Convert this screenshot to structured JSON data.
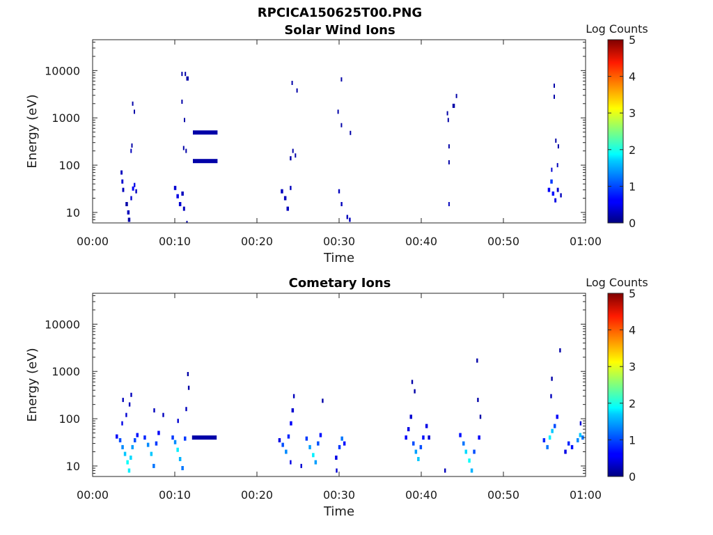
{
  "figure": {
    "title": "RPCICA150625T00.PNG"
  },
  "chart_data": [
    {
      "type": "heatmap",
      "title": "Solar Wind Ions",
      "xlabel": "Time",
      "ylabel": "Energy (eV)",
      "x_ticks": [
        "00:00",
        "00:10",
        "00:20",
        "00:30",
        "00:40",
        "00:50",
        "01:00"
      ],
      "y_ticks": [
        "10",
        "100",
        "1000",
        "10000"
      ],
      "x_range_minutes": [
        0,
        60
      ],
      "y_range_eV": [
        6,
        45000
      ],
      "y_scale": "log",
      "colorbar": {
        "label": "Log Counts",
        "ticks": [
          "0",
          "1",
          "2",
          "3",
          "4",
          "5"
        ],
        "range": [
          0,
          5
        ],
        "colormap": "jet"
      },
      "cells": [
        {
          "t": 3.4,
          "dt": 0.25,
          "e": 70,
          "v": 0.3
        },
        {
          "t": 3.5,
          "dt": 0.25,
          "e": 45,
          "v": 0.4
        },
        {
          "t": 3.6,
          "dt": 0.25,
          "e": 30,
          "v": 0.3
        },
        {
          "t": 4.0,
          "dt": 0.3,
          "e": 15,
          "v": 0.2
        },
        {
          "t": 4.2,
          "dt": 0.3,
          "e": 10,
          "v": 0.3
        },
        {
          "t": 4.3,
          "dt": 0.3,
          "e": 7,
          "v": 0.2
        },
        {
          "t": 4.6,
          "dt": 0.2,
          "e": 20,
          "v": 0.4
        },
        {
          "t": 4.8,
          "dt": 0.25,
          "e": 32,
          "v": 0.6
        },
        {
          "t": 5.0,
          "dt": 0.2,
          "e": 38,
          "v": 0.5
        },
        {
          "t": 5.2,
          "dt": 0.2,
          "e": 28,
          "v": 0.3
        },
        {
          "t": 4.6,
          "dt": 0.15,
          "e": 200,
          "v": 0.3
        },
        {
          "t": 4.7,
          "dt": 0.15,
          "e": 260,
          "v": 0.2
        },
        {
          "t": 4.8,
          "dt": 0.15,
          "e": 2000,
          "v": 0.2
        },
        {
          "t": 5.0,
          "dt": 0.15,
          "e": 1350,
          "v": 0.2
        },
        {
          "t": 9.9,
          "dt": 0.3,
          "e": 33,
          "v": 0.4
        },
        {
          "t": 10.2,
          "dt": 0.3,
          "e": 22,
          "v": 0.5
        },
        {
          "t": 10.5,
          "dt": 0.3,
          "e": 15,
          "v": 0.4
        },
        {
          "t": 10.8,
          "dt": 0.3,
          "e": 25,
          "v": 0.3
        },
        {
          "t": 11.0,
          "dt": 0.25,
          "e": 12,
          "v": 0.3
        },
        {
          "t": 11.4,
          "dt": 0.15,
          "e": 6,
          "v": 0.2
        },
        {
          "t": 10.8,
          "dt": 0.15,
          "e": 2200,
          "v": 0.2
        },
        {
          "t": 11.1,
          "dt": 0.15,
          "e": 900,
          "v": 0.2
        },
        {
          "t": 11.0,
          "dt": 0.15,
          "e": 230,
          "v": 0.2
        },
        {
          "t": 11.3,
          "dt": 0.15,
          "e": 200,
          "v": 0.2
        },
        {
          "t": 10.8,
          "dt": 0.15,
          "e": 8500,
          "v": 0.2
        },
        {
          "t": 11.2,
          "dt": 0.15,
          "e": 8500,
          "v": 0.2
        },
        {
          "t": 11.4,
          "dt": 0.3,
          "e": 6800,
          "v": 0.2
        },
        {
          "t": 12.2,
          "dt": 3.0,
          "e": 490,
          "v": 0.2
        },
        {
          "t": 12.2,
          "dt": 3.0,
          "e": 122,
          "v": 0.2
        },
        {
          "t": 22.9,
          "dt": 0.3,
          "e": 28,
          "v": 0.3
        },
        {
          "t": 23.3,
          "dt": 0.3,
          "e": 20,
          "v": 0.3
        },
        {
          "t": 23.6,
          "dt": 0.3,
          "e": 12,
          "v": 0.3
        },
        {
          "t": 24.0,
          "dt": 0.2,
          "e": 33,
          "v": 0.3
        },
        {
          "t": 24.0,
          "dt": 0.2,
          "e": 140,
          "v": 0.2
        },
        {
          "t": 24.3,
          "dt": 0.15,
          "e": 200,
          "v": 0.2
        },
        {
          "t": 24.6,
          "dt": 0.15,
          "e": 160,
          "v": 0.2
        },
        {
          "t": 24.2,
          "dt": 0.15,
          "e": 5500,
          "v": 0.2
        },
        {
          "t": 24.8,
          "dt": 0.15,
          "e": 3800,
          "v": 0.2
        },
        {
          "t": 29.9,
          "dt": 0.2,
          "e": 28,
          "v": 0.3
        },
        {
          "t": 30.2,
          "dt": 0.2,
          "e": 15,
          "v": 0.3
        },
        {
          "t": 30.9,
          "dt": 0.2,
          "e": 8,
          "v": 0.3
        },
        {
          "t": 31.2,
          "dt": 0.2,
          "e": 7,
          "v": 0.3
        },
        {
          "t": 29.8,
          "dt": 0.15,
          "e": 1350,
          "v": 0.2
        },
        {
          "t": 30.2,
          "dt": 0.15,
          "e": 700,
          "v": 0.2
        },
        {
          "t": 31.3,
          "dt": 0.15,
          "e": 480,
          "v": 0.2
        },
        {
          "t": 30.2,
          "dt": 0.15,
          "e": 6500,
          "v": 0.2
        },
        {
          "t": 43.3,
          "dt": 0.15,
          "e": 15,
          "v": 0.3
        },
        {
          "t": 43.3,
          "dt": 0.15,
          "e": 115,
          "v": 0.2
        },
        {
          "t": 43.3,
          "dt": 0.15,
          "e": 250,
          "v": 0.2
        },
        {
          "t": 43.2,
          "dt": 0.15,
          "e": 900,
          "v": 0.2
        },
        {
          "t": 43.1,
          "dt": 0.15,
          "e": 1250,
          "v": 0.2
        },
        {
          "t": 43.8,
          "dt": 0.3,
          "e": 1800,
          "v": 0.2
        },
        {
          "t": 44.2,
          "dt": 0.15,
          "e": 2900,
          "v": 0.2
        },
        {
          "t": 55.4,
          "dt": 0.3,
          "e": 30,
          "v": 0.6
        },
        {
          "t": 55.7,
          "dt": 0.3,
          "e": 45,
          "v": 0.9
        },
        {
          "t": 55.9,
          "dt": 0.3,
          "e": 25,
          "v": 0.7
        },
        {
          "t": 56.2,
          "dt": 0.25,
          "e": 18,
          "v": 0.5
        },
        {
          "t": 56.5,
          "dt": 0.25,
          "e": 30,
          "v": 0.4
        },
        {
          "t": 56.9,
          "dt": 0.2,
          "e": 23,
          "v": 0.3
        },
        {
          "t": 55.8,
          "dt": 0.15,
          "e": 80,
          "v": 0.4
        },
        {
          "t": 56.5,
          "dt": 0.15,
          "e": 100,
          "v": 0.3
        },
        {
          "t": 56.3,
          "dt": 0.15,
          "e": 330,
          "v": 0.2
        },
        {
          "t": 56.6,
          "dt": 0.15,
          "e": 250,
          "v": 0.2
        },
        {
          "t": 56.1,
          "dt": 0.15,
          "e": 2800,
          "v": 0.2
        },
        {
          "t": 56.1,
          "dt": 0.15,
          "e": 4800,
          "v": 0.2
        }
      ]
    },
    {
      "type": "heatmap",
      "title": "Cometary Ions",
      "xlabel": "Time",
      "ylabel": "Energy (eV)",
      "x_ticks": [
        "00:00",
        "00:10",
        "00:20",
        "00:30",
        "00:40",
        "00:50",
        "01:00"
      ],
      "y_ticks": [
        "10",
        "100",
        "1000",
        "10000"
      ],
      "x_range_minutes": [
        0,
        60
      ],
      "y_range_eV": [
        6,
        45000
      ],
      "y_scale": "log",
      "colorbar": {
        "label": "Log Counts",
        "ticks": [
          "0",
          "1",
          "2",
          "3",
          "4",
          "5"
        ],
        "range": [
          0,
          5
        ],
        "colormap": "jet"
      },
      "cells": [
        {
          "t": 2.8,
          "dt": 0.3,
          "e": 42,
          "v": 0.6
        },
        {
          "t": 3.2,
          "dt": 0.3,
          "e": 35,
          "v": 1.0
        },
        {
          "t": 3.5,
          "dt": 0.3,
          "e": 25,
          "v": 1.3
        },
        {
          "t": 3.8,
          "dt": 0.3,
          "e": 18,
          "v": 1.6
        },
        {
          "t": 4.1,
          "dt": 0.3,
          "e": 12,
          "v": 1.9
        },
        {
          "t": 4.3,
          "dt": 0.3,
          "e": 8,
          "v": 1.8
        },
        {
          "t": 4.5,
          "dt": 0.3,
          "e": 15,
          "v": 1.7
        },
        {
          "t": 4.7,
          "dt": 0.3,
          "e": 25,
          "v": 1.4
        },
        {
          "t": 5.0,
          "dt": 0.3,
          "e": 35,
          "v": 1.0
        },
        {
          "t": 5.3,
          "dt": 0.3,
          "e": 45,
          "v": 0.7
        },
        {
          "t": 3.5,
          "dt": 0.2,
          "e": 80,
          "v": 0.5
        },
        {
          "t": 4.0,
          "dt": 0.2,
          "e": 120,
          "v": 0.4
        },
        {
          "t": 4.4,
          "dt": 0.2,
          "e": 200,
          "v": 0.3
        },
        {
          "t": 4.6,
          "dt": 0.2,
          "e": 320,
          "v": 0.3
        },
        {
          "t": 3.6,
          "dt": 0.2,
          "e": 250,
          "v": 0.3
        },
        {
          "t": 6.2,
          "dt": 0.3,
          "e": 40,
          "v": 0.8
        },
        {
          "t": 6.6,
          "dt": 0.3,
          "e": 28,
          "v": 1.3
        },
        {
          "t": 7.0,
          "dt": 0.3,
          "e": 18,
          "v": 1.6
        },
        {
          "t": 7.3,
          "dt": 0.3,
          "e": 10,
          "v": 1.2
        },
        {
          "t": 7.6,
          "dt": 0.3,
          "e": 30,
          "v": 0.9
        },
        {
          "t": 7.9,
          "dt": 0.3,
          "e": 50,
          "v": 0.6
        },
        {
          "t": 7.4,
          "dt": 0.2,
          "e": 150,
          "v": 0.3
        },
        {
          "t": 8.5,
          "dt": 0.2,
          "e": 120,
          "v": 0.3
        },
        {
          "t": 9.6,
          "dt": 0.3,
          "e": 40,
          "v": 0.9
        },
        {
          "t": 9.9,
          "dt": 0.3,
          "e": 32,
          "v": 1.3
        },
        {
          "t": 10.2,
          "dt": 0.3,
          "e": 22,
          "v": 1.8
        },
        {
          "t": 10.5,
          "dt": 0.3,
          "e": 14,
          "v": 1.5
        },
        {
          "t": 10.8,
          "dt": 0.3,
          "e": 9,
          "v": 1.2
        },
        {
          "t": 11.1,
          "dt": 0.3,
          "e": 38,
          "v": 0.9
        },
        {
          "t": 10.3,
          "dt": 0.2,
          "e": 90,
          "v": 0.4
        },
        {
          "t": 11.3,
          "dt": 0.2,
          "e": 160,
          "v": 0.3
        },
        {
          "t": 11.5,
          "dt": 0.2,
          "e": 880,
          "v": 0.2
        },
        {
          "t": 11.6,
          "dt": 0.2,
          "e": 450,
          "v": 0.2
        },
        {
          "t": 12.1,
          "dt": 3.0,
          "e": 40,
          "v": 0.2
        },
        {
          "t": 22.6,
          "dt": 0.3,
          "e": 35,
          "v": 0.5
        },
        {
          "t": 23.0,
          "dt": 0.3,
          "e": 28,
          "v": 1.0
        },
        {
          "t": 23.4,
          "dt": 0.3,
          "e": 20,
          "v": 1.3
        },
        {
          "t": 23.7,
          "dt": 0.3,
          "e": 42,
          "v": 0.8
        },
        {
          "t": 24.0,
          "dt": 0.3,
          "e": 80,
          "v": 0.6
        },
        {
          "t": 24.2,
          "dt": 0.3,
          "e": 150,
          "v": 0.4
        },
        {
          "t": 24.4,
          "dt": 0.2,
          "e": 300,
          "v": 0.3
        },
        {
          "t": 24.0,
          "dt": 0.2,
          "e": 12,
          "v": 0.5
        },
        {
          "t": 25.3,
          "dt": 0.2,
          "e": 10,
          "v": 0.4
        },
        {
          "t": 25.9,
          "dt": 0.3,
          "e": 38,
          "v": 0.9
        },
        {
          "t": 26.3,
          "dt": 0.3,
          "e": 25,
          "v": 1.4
        },
        {
          "t": 26.7,
          "dt": 0.3,
          "e": 17,
          "v": 1.8
        },
        {
          "t": 27.0,
          "dt": 0.3,
          "e": 12,
          "v": 1.4
        },
        {
          "t": 27.3,
          "dt": 0.3,
          "e": 30,
          "v": 1.0
        },
        {
          "t": 27.6,
          "dt": 0.3,
          "e": 45,
          "v": 0.7
        },
        {
          "t": 27.9,
          "dt": 0.2,
          "e": 240,
          "v": 0.2
        },
        {
          "t": 29.5,
          "dt": 0.3,
          "e": 15,
          "v": 0.5
        },
        {
          "t": 29.9,
          "dt": 0.3,
          "e": 25,
          "v": 0.9
        },
        {
          "t": 30.2,
          "dt": 0.3,
          "e": 38,
          "v": 1.2
        },
        {
          "t": 30.5,
          "dt": 0.3,
          "e": 30,
          "v": 0.7
        },
        {
          "t": 29.6,
          "dt": 0.2,
          "e": 8,
          "v": 0.4
        },
        {
          "t": 38.0,
          "dt": 0.3,
          "e": 40,
          "v": 0.6
        },
        {
          "t": 38.3,
          "dt": 0.3,
          "e": 60,
          "v": 0.5
        },
        {
          "t": 38.6,
          "dt": 0.3,
          "e": 110,
          "v": 0.4
        },
        {
          "t": 38.9,
          "dt": 0.3,
          "e": 30,
          "v": 1.0
        },
        {
          "t": 39.2,
          "dt": 0.3,
          "e": 20,
          "v": 1.4
        },
        {
          "t": 39.5,
          "dt": 0.3,
          "e": 14,
          "v": 1.6
        },
        {
          "t": 39.8,
          "dt": 0.3,
          "e": 25,
          "v": 1.0
        },
        {
          "t": 40.1,
          "dt": 0.3,
          "e": 40,
          "v": 0.7
        },
        {
          "t": 40.5,
          "dt": 0.3,
          "e": 70,
          "v": 0.5
        },
        {
          "t": 40.8,
          "dt": 0.3,
          "e": 40,
          "v": 0.4
        },
        {
          "t": 38.8,
          "dt": 0.2,
          "e": 600,
          "v": 0.2
        },
        {
          "t": 39.1,
          "dt": 0.2,
          "e": 380,
          "v": 0.2
        },
        {
          "t": 42.8,
          "dt": 0.2,
          "e": 8,
          "v": 0.3
        },
        {
          "t": 44.6,
          "dt": 0.3,
          "e": 45,
          "v": 0.7
        },
        {
          "t": 45.0,
          "dt": 0.3,
          "e": 30,
          "v": 1.2
        },
        {
          "t": 45.3,
          "dt": 0.3,
          "e": 20,
          "v": 1.7
        },
        {
          "t": 45.7,
          "dt": 0.3,
          "e": 13,
          "v": 1.9
        },
        {
          "t": 46.0,
          "dt": 0.3,
          "e": 8,
          "v": 1.5
        },
        {
          "t": 46.3,
          "dt": 0.3,
          "e": 20,
          "v": 1.0
        },
        {
          "t": 46.9,
          "dt": 0.3,
          "e": 40,
          "v": 0.6
        },
        {
          "t": 46.8,
          "dt": 0.2,
          "e": 250,
          "v": 0.2
        },
        {
          "t": 46.7,
          "dt": 0.2,
          "e": 1700,
          "v": 0.2
        },
        {
          "t": 47.1,
          "dt": 0.2,
          "e": 110,
          "v": 0.2
        },
        {
          "t": 54.8,
          "dt": 0.3,
          "e": 35,
          "v": 0.8
        },
        {
          "t": 55.2,
          "dt": 0.3,
          "e": 25,
          "v": 1.2
        },
        {
          "t": 55.5,
          "dt": 0.3,
          "e": 40,
          "v": 1.8
        },
        {
          "t": 55.8,
          "dt": 0.3,
          "e": 55,
          "v": 1.6
        },
        {
          "t": 56.1,
          "dt": 0.3,
          "e": 70,
          "v": 1.0
        },
        {
          "t": 56.4,
          "dt": 0.3,
          "e": 110,
          "v": 0.6
        },
        {
          "t": 55.7,
          "dt": 0.2,
          "e": 300,
          "v": 0.3
        },
        {
          "t": 55.8,
          "dt": 0.2,
          "e": 700,
          "v": 0.2
        },
        {
          "t": 56.8,
          "dt": 0.2,
          "e": 2800,
          "v": 0.2
        },
        {
          "t": 57.4,
          "dt": 0.3,
          "e": 20,
          "v": 0.5
        },
        {
          "t": 57.8,
          "dt": 0.3,
          "e": 30,
          "v": 0.8
        },
        {
          "t": 58.2,
          "dt": 0.3,
          "e": 25,
          "v": 0.7
        },
        {
          "t": 58.9,
          "dt": 0.3,
          "e": 35,
          "v": 1.3
        },
        {
          "t": 59.2,
          "dt": 0.3,
          "e": 45,
          "v": 1.6
        },
        {
          "t": 59.5,
          "dt": 0.3,
          "e": 40,
          "v": 1.2
        },
        {
          "t": 59.3,
          "dt": 0.2,
          "e": 80,
          "v": 0.4
        }
      ]
    }
  ]
}
